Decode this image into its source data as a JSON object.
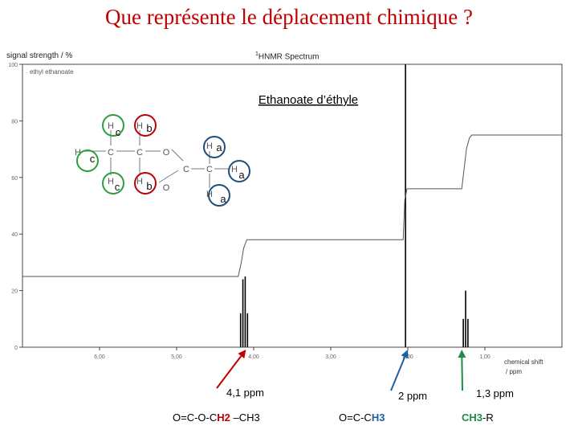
{
  "slide": {
    "title": "Que représente le déplacement chimique ?"
  },
  "chart_data": {
    "type": "line",
    "title": "HNMR Spectrum",
    "title_superscript": "1",
    "ylabel": "signal strength / %",
    "xlabel_line1": "chemical shift",
    "xlabel_line2": "/ ppm",
    "sample_label": "ethyl ethanoate",
    "xlim": [
      7.0,
      0.0
    ],
    "ylim": [
      0,
      100
    ],
    "x_ticks": [
      6.0,
      5.0,
      4.0,
      3.0,
      2.0,
      1.0
    ],
    "x_tick_labels": [
      "6,00",
      "5,00",
      "4,00",
      "3,00",
      "2,00",
      "1,00"
    ],
    "y_ticks": [
      0,
      20,
      40,
      60,
      80,
      100
    ],
    "y_tick_labels": [
      "0",
      "20",
      "40",
      "60",
      "80",
      "100"
    ],
    "spectrum_peaks": [
      {
        "x": 4.17,
        "height": 12
      },
      {
        "x": 4.14,
        "height": 24
      },
      {
        "x": 4.11,
        "height": 25
      },
      {
        "x": 4.08,
        "height": 12
      },
      {
        "x": 2.03,
        "height": 100
      },
      {
        "x": 1.28,
        "height": 10
      },
      {
        "x": 1.25,
        "height": 20
      },
      {
        "x": 1.22,
        "height": 10
      }
    ],
    "integration_curve": [
      [
        7.0,
        25
      ],
      [
        4.2,
        25
      ],
      [
        4.16,
        30
      ],
      [
        4.13,
        35
      ],
      [
        4.09,
        38
      ],
      [
        4.05,
        38
      ],
      [
        2.06,
        38
      ],
      [
        2.04,
        52
      ],
      [
        2.01,
        56
      ],
      [
        1.98,
        56
      ],
      [
        1.3,
        56
      ],
      [
        1.27,
        63
      ],
      [
        1.24,
        70
      ],
      [
        1.2,
        74
      ],
      [
        1.17,
        75
      ],
      [
        0.0,
        75
      ]
    ]
  },
  "molecule": {
    "name": "Ethanoate d’éthyle",
    "atoms": {
      "H": "H",
      "C": "C",
      "O": "O"
    },
    "tags": {
      "a": "a",
      "b": "b",
      "c": "c"
    },
    "circle_colors": {
      "a": "#1f4e79",
      "b": "#c00000",
      "c": "#2e9c3f"
    }
  },
  "annotations": [
    {
      "id": "shift-41",
      "ppm": 4.1,
      "color": "#c00000",
      "label": "4,1 ppm",
      "formula_parts": [
        {
          "text": "O=C-O-C",
          "highlight": ""
        },
        {
          "text": "H2",
          "highlight": "red"
        },
        {
          "text": " –CH3",
          "highlight": ""
        }
      ]
    },
    {
      "id": "shift-2",
      "ppm": 2.0,
      "color": "#1f5f9f",
      "label": "2 ppm",
      "formula_parts": [
        {
          "text": "O=C-C",
          "highlight": ""
        },
        {
          "text": "H3",
          "highlight": "blue"
        }
      ]
    },
    {
      "id": "shift-13",
      "ppm": 1.3,
      "color": "#1e8c45",
      "label": "1,3 ppm",
      "formula_parts": [
        {
          "text": "CH3",
          "highlight": "green"
        },
        {
          "text": "-R",
          "highlight": ""
        }
      ]
    }
  ]
}
